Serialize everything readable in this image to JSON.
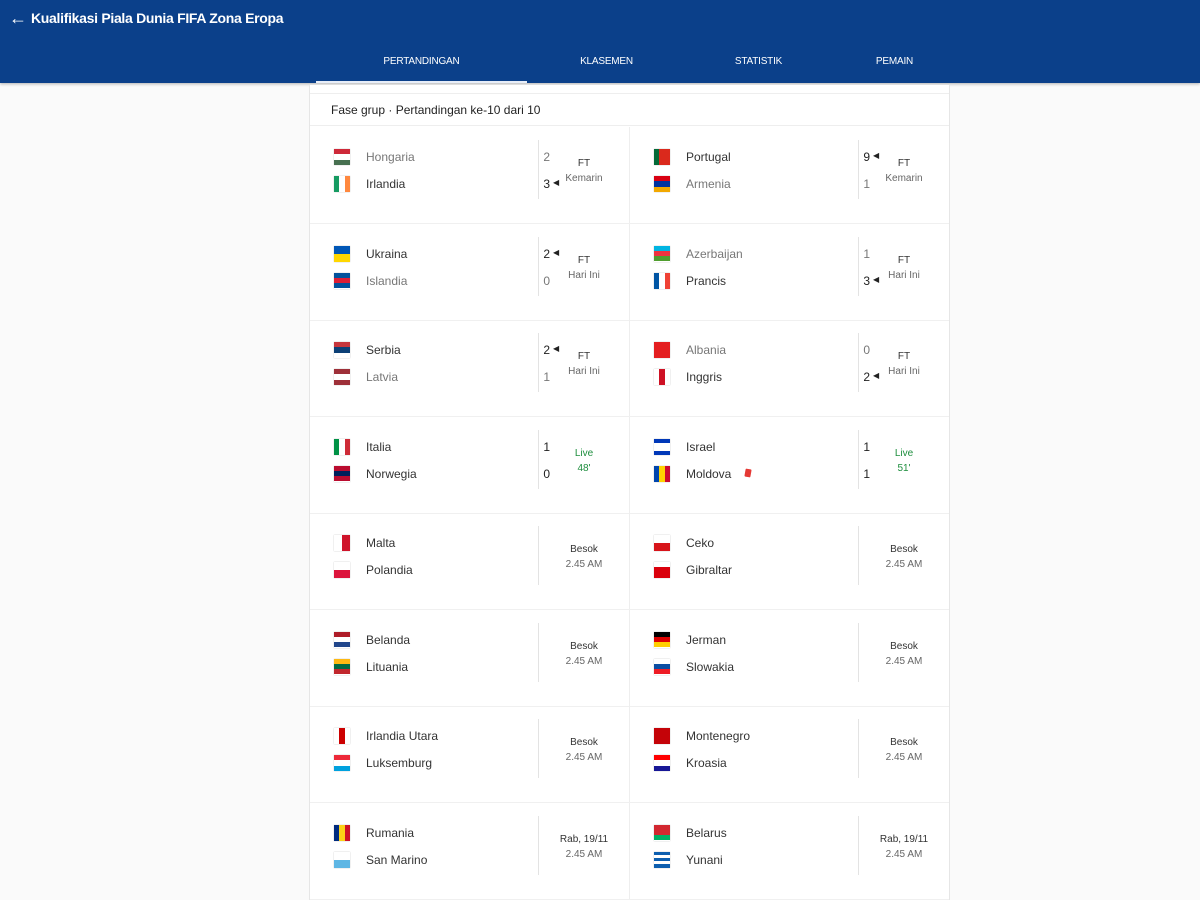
{
  "header": {
    "back_icon": "arrow-left-icon",
    "title": "Kualifikasi Piala Dunia FIFA Zona Eropa",
    "color": "#0b408a"
  },
  "tabs": [
    {
      "label": "PERTANDINGAN",
      "active": true
    },
    {
      "label": "KLASEMEN",
      "active": false
    },
    {
      "label": "STATISTIK",
      "active": false
    },
    {
      "label": "PEMAIN",
      "active": false
    }
  ],
  "phase": "Fase grup · Pertandingan ke-10 dari 10",
  "live_color": "#1e8e3e",
  "matches": [
    {
      "home": {
        "name": "Hongaria",
        "score": "2",
        "winner": false,
        "flag": {
          "dir": "h",
          "colors": [
            "#ce2939",
            "#ffffff",
            "#477050"
          ]
        }
      },
      "away": {
        "name": "Irlandia",
        "score": "3",
        "winner": true,
        "flag": {
          "dir": "v",
          "colors": [
            "#169b62",
            "#ffffff",
            "#ff883e"
          ]
        }
      },
      "status": {
        "line1": "FT",
        "line2": "Kemarin",
        "live": false
      }
    },
    {
      "home": {
        "name": "Portugal",
        "score": "9",
        "winner": true,
        "flag": {
          "dir": "v",
          "colors": [
            "#046a38",
            "#da291c",
            "#da291c"
          ]
        }
      },
      "away": {
        "name": "Armenia",
        "score": "1",
        "winner": false,
        "flag": {
          "dir": "h",
          "colors": [
            "#d90012",
            "#0033a0",
            "#f2a800"
          ]
        }
      },
      "status": {
        "line1": "FT",
        "line2": "Kemarin",
        "live": false
      }
    },
    {
      "home": {
        "name": "Ukraina",
        "score": "2",
        "winner": true,
        "flag": {
          "dir": "h",
          "colors": [
            "#0057b7",
            "#ffd700"
          ]
        }
      },
      "away": {
        "name": "Islandia",
        "score": "0",
        "winner": false,
        "flag": {
          "dir": "h",
          "colors": [
            "#02529c",
            "#dc1e35",
            "#02529c"
          ]
        }
      },
      "status": {
        "line1": "FT",
        "line2": "Hari Ini",
        "live": false
      }
    },
    {
      "home": {
        "name": "Azerbaijan",
        "score": "1",
        "winner": false,
        "flag": {
          "dir": "h",
          "colors": [
            "#00b5e2",
            "#ef3340",
            "#509e2f"
          ]
        }
      },
      "away": {
        "name": "Prancis",
        "score": "3",
        "winner": true,
        "flag": {
          "dir": "v",
          "colors": [
            "#0055a4",
            "#ffffff",
            "#ef4135"
          ]
        }
      },
      "status": {
        "line1": "FT",
        "line2": "Hari Ini",
        "live": false
      }
    },
    {
      "home": {
        "name": "Serbia",
        "score": "2",
        "winner": true,
        "flag": {
          "dir": "h",
          "colors": [
            "#c6363c",
            "#0c4076",
            "#ffffff"
          ]
        }
      },
      "away": {
        "name": "Latvia",
        "score": "1",
        "winner": false,
        "flag": {
          "dir": "h",
          "colors": [
            "#9e3039",
            "#ffffff",
            "#9e3039"
          ]
        }
      },
      "status": {
        "line1": "FT",
        "line2": "Hari Ini",
        "live": false
      }
    },
    {
      "home": {
        "name": "Albania",
        "score": "0",
        "winner": false,
        "flag": {
          "dir": "h",
          "colors": [
            "#e41e20"
          ]
        }
      },
      "away": {
        "name": "Inggris",
        "score": "2",
        "winner": true,
        "flag": {
          "dir": "v",
          "colors": [
            "#ffffff",
            "#ce1124",
            "#ffffff"
          ]
        }
      },
      "status": {
        "line1": "FT",
        "line2": "Hari Ini",
        "live": false
      }
    },
    {
      "home": {
        "name": "Italia",
        "score": "1",
        "winner": false,
        "flag": {
          "dir": "v",
          "colors": [
            "#009246",
            "#ffffff",
            "#ce2b37"
          ]
        }
      },
      "away": {
        "name": "Norwegia",
        "score": "0",
        "winner": false,
        "flag": {
          "dir": "h",
          "colors": [
            "#ba0c2f",
            "#00205b",
            "#ba0c2f"
          ]
        }
      },
      "status": {
        "line1": "Live",
        "line2": "48'",
        "live": true
      }
    },
    {
      "home": {
        "name": "Israel",
        "score": "1",
        "winner": false,
        "flag": {
          "dir": "h",
          "colors": [
            "#0038b8",
            "#ffffff",
            "#ffffff",
            "#0038b8"
          ]
        }
      },
      "away": {
        "name": "Moldova",
        "score": "1",
        "winner": false,
        "red_card": true,
        "flag": {
          "dir": "v",
          "colors": [
            "#0046ae",
            "#ffd200",
            "#cc092f"
          ]
        }
      },
      "status": {
        "line1": "Live",
        "line2": "51'",
        "live": true
      }
    },
    {
      "home": {
        "name": "Malta",
        "score": "",
        "winner": false,
        "flag": {
          "dir": "v",
          "colors": [
            "#ffffff",
            "#cf142b"
          ]
        }
      },
      "away": {
        "name": "Polandia",
        "score": "",
        "winner": false,
        "flag": {
          "dir": "h",
          "colors": [
            "#ffffff",
            "#dc143c"
          ]
        }
      },
      "status": {
        "line1": "Besok",
        "line2": "2.45 AM",
        "live": false
      }
    },
    {
      "home": {
        "name": "Ceko",
        "score": "",
        "winner": false,
        "flag": {
          "dir": "h",
          "colors": [
            "#ffffff",
            "#d7141a"
          ]
        }
      },
      "away": {
        "name": "Gibraltar",
        "score": "",
        "winner": false,
        "flag": {
          "dir": "h",
          "colors": [
            "#ffffff",
            "#da000c",
            "#da000c"
          ]
        }
      },
      "status": {
        "line1": "Besok",
        "line2": "2.45 AM",
        "live": false
      }
    },
    {
      "home": {
        "name": "Belanda",
        "score": "",
        "winner": false,
        "flag": {
          "dir": "h",
          "colors": [
            "#ae1c28",
            "#ffffff",
            "#21468b"
          ]
        }
      },
      "away": {
        "name": "Lituania",
        "score": "",
        "winner": false,
        "flag": {
          "dir": "h",
          "colors": [
            "#fdb913",
            "#006a44",
            "#c1272d"
          ]
        }
      },
      "status": {
        "line1": "Besok",
        "line2": "2.45 AM",
        "live": false
      }
    },
    {
      "home": {
        "name": "Jerman",
        "score": "",
        "winner": false,
        "flag": {
          "dir": "h",
          "colors": [
            "#000000",
            "#dd0000",
            "#ffce00"
          ]
        }
      },
      "away": {
        "name": "Slowakia",
        "score": "",
        "winner": false,
        "flag": {
          "dir": "h",
          "colors": [
            "#ffffff",
            "#0b4ea2",
            "#ee1c25"
          ]
        }
      },
      "status": {
        "line1": "Besok",
        "line2": "2.45 AM",
        "live": false
      }
    },
    {
      "home": {
        "name": "Irlandia Utara",
        "score": "",
        "winner": false,
        "flag": {
          "dir": "v",
          "colors": [
            "#ffffff",
            "#cc0000",
            "#ffffff"
          ]
        }
      },
      "away": {
        "name": "Luksemburg",
        "score": "",
        "winner": false,
        "flag": {
          "dir": "h",
          "colors": [
            "#ed2939",
            "#ffffff",
            "#00a1de"
          ]
        }
      },
      "status": {
        "line1": "Besok",
        "line2": "2.45 AM",
        "live": false
      }
    },
    {
      "home": {
        "name": "Montenegro",
        "score": "",
        "winner": false,
        "flag": {
          "dir": "h",
          "colors": [
            "#c40308"
          ]
        }
      },
      "away": {
        "name": "Kroasia",
        "score": "",
        "winner": false,
        "flag": {
          "dir": "h",
          "colors": [
            "#ff0000",
            "#ffffff",
            "#171796"
          ]
        }
      },
      "status": {
        "line1": "Besok",
        "line2": "2.45 AM",
        "live": false
      }
    },
    {
      "home": {
        "name": "Rumania",
        "score": "",
        "winner": false,
        "flag": {
          "dir": "v",
          "colors": [
            "#002b7f",
            "#fcd116",
            "#ce1126"
          ]
        }
      },
      "away": {
        "name": "San Marino",
        "score": "",
        "winner": false,
        "flag": {
          "dir": "h",
          "colors": [
            "#ffffff",
            "#5eb6e4"
          ]
        }
      },
      "status": {
        "line1": "Rab, 19/11",
        "line2": "2.45 AM",
        "live": false
      }
    },
    {
      "home": {
        "name": "Belarus",
        "score": "",
        "winner": false,
        "flag": {
          "dir": "h",
          "colors": [
            "#d22730",
            "#d22730",
            "#00af66"
          ]
        }
      },
      "away": {
        "name": "Yunani",
        "score": "",
        "winner": false,
        "flag": {
          "dir": "h",
          "colors": [
            "#0d5eaf",
            "#ffffff",
            "#0d5eaf",
            "#ffffff",
            "#0d5eaf"
          ]
        }
      },
      "status": {
        "line1": "Rab, 19/11",
        "line2": "2.45 AM",
        "live": false
      }
    }
  ]
}
